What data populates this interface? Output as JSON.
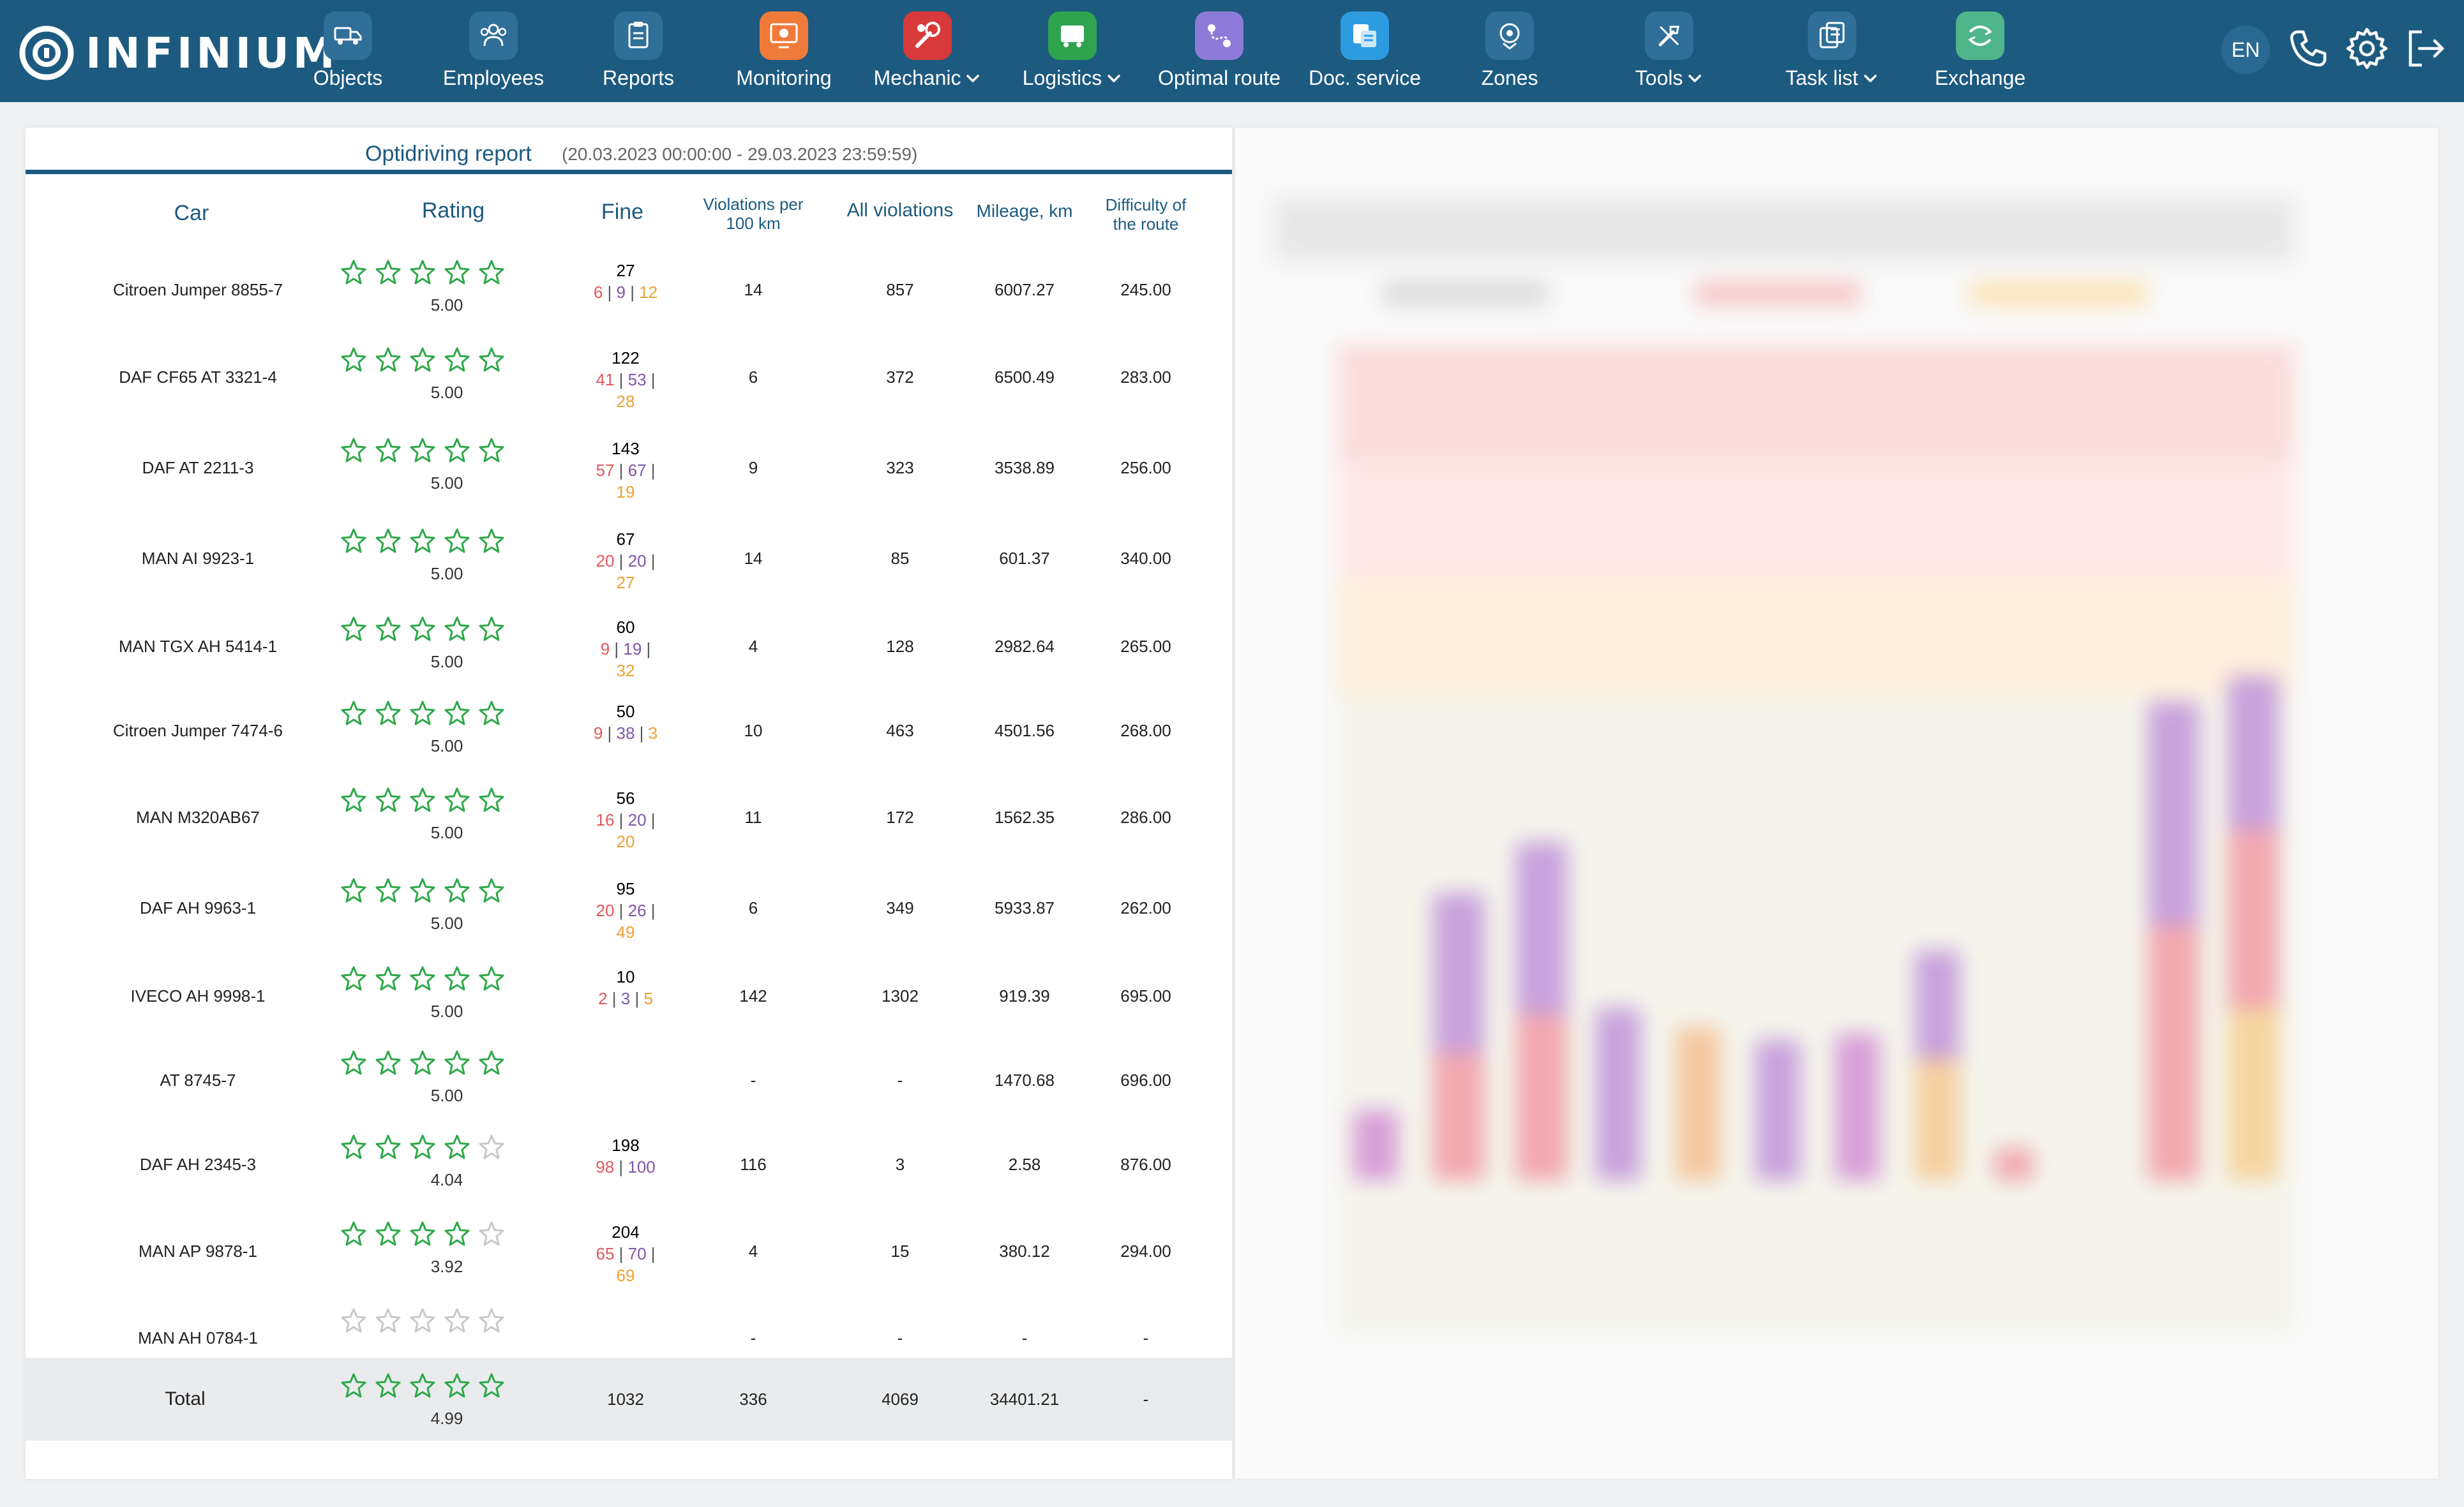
{
  "app": {
    "logo_text": "INFINIUM"
  },
  "nav": {
    "items": [
      {
        "label": "Objects",
        "icon": "truck-icon",
        "color": "#2f6f98"
      },
      {
        "label": "Employees",
        "icon": "users-icon",
        "color": "#2f6f98"
      },
      {
        "label": "Reports",
        "icon": "clipboard-icon",
        "color": "#2f6f98"
      },
      {
        "label": "Monitoring",
        "icon": "monitor-icon",
        "color": "#f07a3a"
      },
      {
        "label": "Mechanic",
        "icon": "wrench-icon",
        "color": "#d83a3a",
        "dropdown": true
      },
      {
        "label": "Logistics",
        "icon": "logistics-icon",
        "color": "#2ea44f",
        "dropdown": true
      },
      {
        "label": "Optimal route",
        "icon": "route-icon",
        "color": "#8e7ad8"
      },
      {
        "label": "Doc. service",
        "icon": "document-icon",
        "color": "#2d9be0"
      },
      {
        "label": "Zones",
        "icon": "zones-icon",
        "color": "#2f6f98"
      },
      {
        "label": "Tools",
        "icon": "tools-icon",
        "color": "#2f6f98",
        "dropdown": true
      },
      {
        "label": "Task list",
        "icon": "tasklist-icon",
        "color": "#2f6f98",
        "dropdown": true
      },
      {
        "label": "Exchange",
        "icon": "exchange-icon",
        "color": "#4fb58a"
      }
    ],
    "lang": "EN"
  },
  "report": {
    "title": "Optidriving report",
    "period": "(20.03.2023 00:00:00 - 29.03.2023 23:59:59)",
    "columns": {
      "car": "Car",
      "rating": "Rating",
      "fine": "Fine",
      "violations_100": "Violations per 100 km",
      "all_violations": "All violations",
      "mileage": "Mileage, km",
      "difficulty": "Difficulty of the route"
    },
    "rows": [
      {
        "car": "Citroen Jumper 8855-7",
        "stars": 5,
        "rating": "5.00",
        "fine": "27",
        "fine_red": "6",
        "fine_purple": "9",
        "fine_orange": "12",
        "v100": "14",
        "all": "857",
        "mileage": "6007.27",
        "difficulty": "245.00"
      },
      {
        "car": "DAF CF65 AT 3321-4",
        "stars": 5,
        "rating": "5.00",
        "fine": "122",
        "fine_red": "41",
        "fine_purple": "53",
        "fine_orange": "28",
        "v100": "6",
        "all": "372",
        "mileage": "6500.49",
        "difficulty": "283.00"
      },
      {
        "car": "DAF AT 2211-3",
        "stars": 5,
        "rating": "5.00",
        "fine": "143",
        "fine_red": "57",
        "fine_purple": "67",
        "fine_orange": "19",
        "v100": "9",
        "all": "323",
        "mileage": "3538.89",
        "difficulty": "256.00"
      },
      {
        "car": "MAN AI 9923-1",
        "stars": 5,
        "rating": "5.00",
        "fine": "67",
        "fine_red": "20",
        "fine_purple": "20",
        "fine_orange": "27",
        "v100": "14",
        "all": "85",
        "mileage": "601.37",
        "difficulty": "340.00"
      },
      {
        "car": "MAN TGX AH 5414-1",
        "stars": 5,
        "rating": "5.00",
        "fine": "60",
        "fine_red": "9",
        "fine_purple": "19",
        "fine_orange": "32",
        "v100": "4",
        "all": "128",
        "mileage": "2982.64",
        "difficulty": "265.00"
      },
      {
        "car": "Citroen Jumper 7474-6",
        "stars": 5,
        "rating": "5.00",
        "fine": "50",
        "fine_red": "9",
        "fine_purple": "38",
        "fine_orange": "3",
        "v100": "10",
        "all": "463",
        "mileage": "4501.56",
        "difficulty": "268.00"
      },
      {
        "car": "MAN M320AB67",
        "stars": 5,
        "rating": "5.00",
        "fine": "56",
        "fine_red": "16",
        "fine_purple": "20",
        "fine_orange": "20",
        "v100": "11",
        "all": "172",
        "mileage": "1562.35",
        "difficulty": "286.00"
      },
      {
        "car": "DAF  AH 9963-1",
        "stars": 5,
        "rating": "5.00",
        "fine": "95",
        "fine_red": "20",
        "fine_purple": "26",
        "fine_orange": "49",
        "v100": "6",
        "all": "349",
        "mileage": "5933.87",
        "difficulty": "262.00"
      },
      {
        "car": "IVECO AH 9998-1",
        "stars": 5,
        "rating": "5.00",
        "fine": "10",
        "fine_red": "2",
        "fine_purple": "3",
        "fine_orange": "5",
        "v100": "142",
        "all": "1302",
        "mileage": "919.39",
        "difficulty": "695.00"
      },
      {
        "car": "AT 8745-7",
        "stars": 5,
        "rating": "5.00",
        "fine": "",
        "fine_red": "",
        "fine_purple": "",
        "fine_orange": "",
        "v100": "-",
        "all": "-",
        "mileage": "1470.68",
        "difficulty": "696.00"
      },
      {
        "car": "DAF AH 2345-3",
        "stars": 4,
        "rating": "4.04",
        "fine": "198",
        "fine_red": "98",
        "fine_purple": "100",
        "fine_orange": "",
        "v100": "116",
        "all": "3",
        "mileage": "2.58",
        "difficulty": "876.00"
      },
      {
        "car": "MAN AP 9878-1",
        "stars": 4,
        "rating": "3.92",
        "fine": "204",
        "fine_red": "65",
        "fine_purple": "70",
        "fine_orange": "69",
        "v100": "4",
        "all": "15",
        "mileage": "380.12",
        "difficulty": "294.00"
      },
      {
        "car": "MAN AH 0784-1",
        "stars": 0,
        "rating": "",
        "fine": "",
        "fine_red": "",
        "fine_purple": "",
        "fine_orange": "",
        "v100": "-",
        "all": "-",
        "mileage": "-",
        "difficulty": "-"
      }
    ],
    "total": {
      "label": "Total",
      "stars": 5,
      "rating": "4.99",
      "fine": "1032",
      "v100": "336",
      "all": "4069",
      "mileage": "34401.21",
      "difficulty": "-"
    }
  },
  "colors": {
    "navbar": "#1d5a80",
    "accent": "#1d5a80",
    "star": "#2ea84a",
    "star_empty": "#c8c8c8",
    "fine_red": "#e0585c",
    "fine_purple": "#8056a8",
    "fine_orange": "#f0a030"
  },
  "chart_panel": {
    "state": "blurred"
  }
}
